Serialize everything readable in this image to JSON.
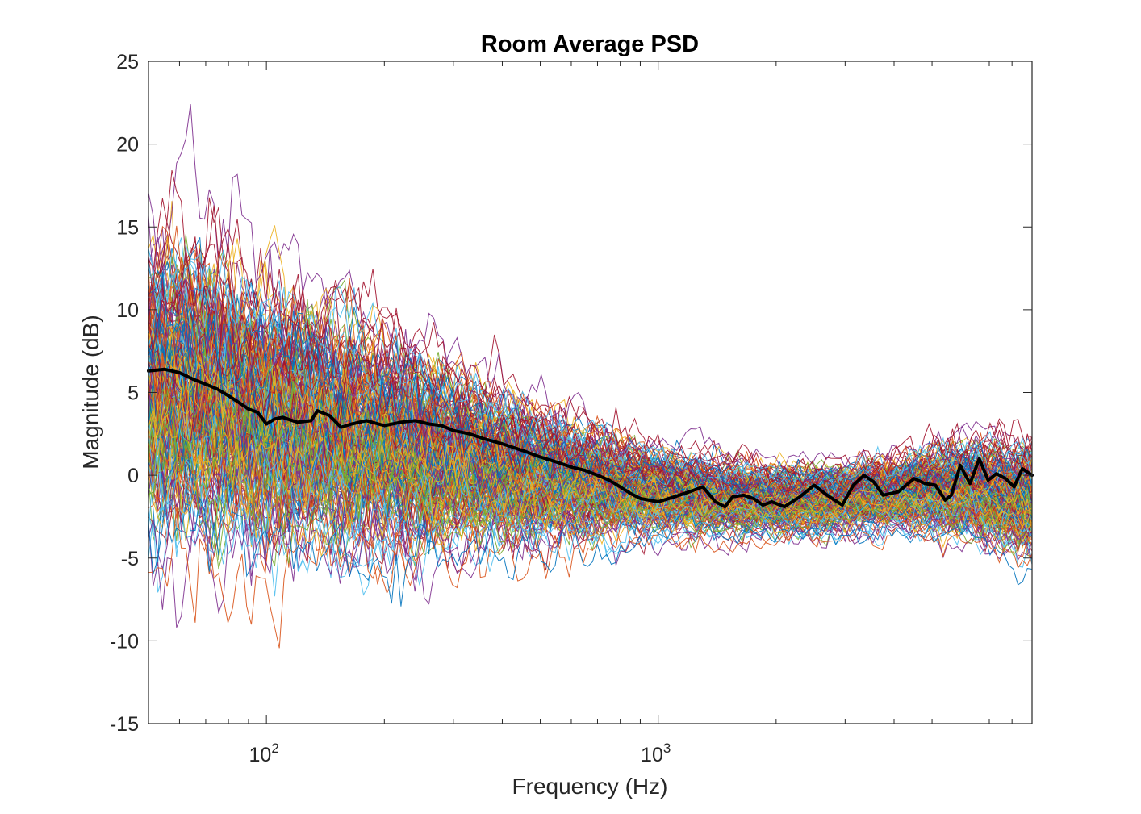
{
  "chart_data": {
    "type": "line",
    "title": "Room Average PSD",
    "xlabel": "Frequency (Hz)",
    "ylabel": "Magnitude (dB)",
    "xscale": "log",
    "xlim": [
      50,
      9000
    ],
    "ylim": [
      -15,
      25
    ],
    "grid": false,
    "yticks": [
      -15,
      -10,
      -5,
      0,
      5,
      10,
      15,
      20,
      25
    ],
    "ytick_labels": [
      "-15",
      "-10",
      "-5",
      "0",
      "5",
      "10",
      "15",
      "20",
      "25"
    ],
    "xticks": [
      100,
      1000
    ],
    "xtick_labels": [
      {
        "base": "10",
        "exp": "2"
      },
      {
        "base": "10",
        "exp": "3"
      }
    ],
    "individual_measurements": {
      "description": "many overlapping colored PSD traces from individual measurement positions",
      "count": 220,
      "palette": [
        "#0072BD",
        "#D95319",
        "#EDB120",
        "#7E2F8E",
        "#77AC30",
        "#4DBEEE",
        "#A2142F"
      ],
      "band_center_db": [
        [
          50,
          5.5
        ],
        [
          70,
          5.0
        ],
        [
          100,
          3.5
        ],
        [
          150,
          2.6
        ],
        [
          200,
          2.0
        ],
        [
          300,
          1.0
        ],
        [
          500,
          0.0
        ],
        [
          700,
          -0.5
        ],
        [
          1000,
          -1.0
        ],
        [
          1500,
          -1.3
        ],
        [
          2000,
          -1.5
        ],
        [
          3000,
          -1.4
        ],
        [
          4000,
          -1.0
        ],
        [
          6000,
          -0.8
        ],
        [
          9000,
          -1.5
        ]
      ],
      "band_spread_db": [
        [
          50,
          9.0
        ],
        [
          100,
          8.0
        ],
        [
          200,
          6.5
        ],
        [
          500,
          4.0
        ],
        [
          1000,
          2.5
        ],
        [
          2000,
          2.0
        ],
        [
          4000,
          2.2
        ],
        [
          9000,
          3.5
        ]
      ]
    },
    "series": [
      {
        "name": "Room average",
        "color": "#000000",
        "line_width": "thick",
        "points": [
          [
            50,
            6.3
          ],
          [
            55,
            6.4
          ],
          [
            60,
            6.2
          ],
          [
            65,
            5.8
          ],
          [
            70,
            5.5
          ],
          [
            75,
            5.2
          ],
          [
            80,
            4.8
          ],
          [
            85,
            4.4
          ],
          [
            90,
            4.0
          ],
          [
            95,
            3.8
          ],
          [
            100,
            3.1
          ],
          [
            105,
            3.4
          ],
          [
            110,
            3.5
          ],
          [
            120,
            3.2
          ],
          [
            130,
            3.3
          ],
          [
            135,
            3.9
          ],
          [
            145,
            3.6
          ],
          [
            155,
            2.9
          ],
          [
            165,
            3.1
          ],
          [
            180,
            3.3
          ],
          [
            200,
            3.0
          ],
          [
            220,
            3.2
          ],
          [
            240,
            3.3
          ],
          [
            260,
            3.1
          ],
          [
            280,
            3.0
          ],
          [
            300,
            2.7
          ],
          [
            330,
            2.5
          ],
          [
            360,
            2.2
          ],
          [
            400,
            1.9
          ],
          [
            450,
            1.5
          ],
          [
            500,
            1.1
          ],
          [
            550,
            0.8
          ],
          [
            600,
            0.5
          ],
          [
            650,
            0.3
          ],
          [
            700,
            0.0
          ],
          [
            750,
            -0.3
          ],
          [
            800,
            -0.7
          ],
          [
            850,
            -1.1
          ],
          [
            900,
            -1.4
          ],
          [
            1000,
            -1.6
          ],
          [
            1100,
            -1.3
          ],
          [
            1200,
            -1.0
          ],
          [
            1300,
            -0.7
          ],
          [
            1400,
            -1.6
          ],
          [
            1480,
            -1.9
          ],
          [
            1550,
            -1.3
          ],
          [
            1650,
            -1.2
          ],
          [
            1750,
            -1.4
          ],
          [
            1850,
            -1.8
          ],
          [
            1950,
            -1.6
          ],
          [
            2100,
            -1.9
          ],
          [
            2300,
            -1.3
          ],
          [
            2500,
            -0.6
          ],
          [
            2700,
            -1.2
          ],
          [
            2950,
            -1.8
          ],
          [
            3150,
            -0.6
          ],
          [
            3350,
            0.0
          ],
          [
            3550,
            -0.4
          ],
          [
            3750,
            -1.2
          ],
          [
            4100,
            -1.0
          ],
          [
            4500,
            -0.2
          ],
          [
            4800,
            -0.5
          ],
          [
            5100,
            -0.6
          ],
          [
            5400,
            -1.5
          ],
          [
            5600,
            -1.2
          ],
          [
            5900,
            0.6
          ],
          [
            6250,
            -0.5
          ],
          [
            6600,
            1.0
          ],
          [
            6950,
            -0.3
          ],
          [
            7300,
            0.1
          ],
          [
            7700,
            -0.2
          ],
          [
            8100,
            -0.7
          ],
          [
            8500,
            0.4
          ],
          [
            9000,
            0.0
          ]
        ]
      }
    ]
  }
}
